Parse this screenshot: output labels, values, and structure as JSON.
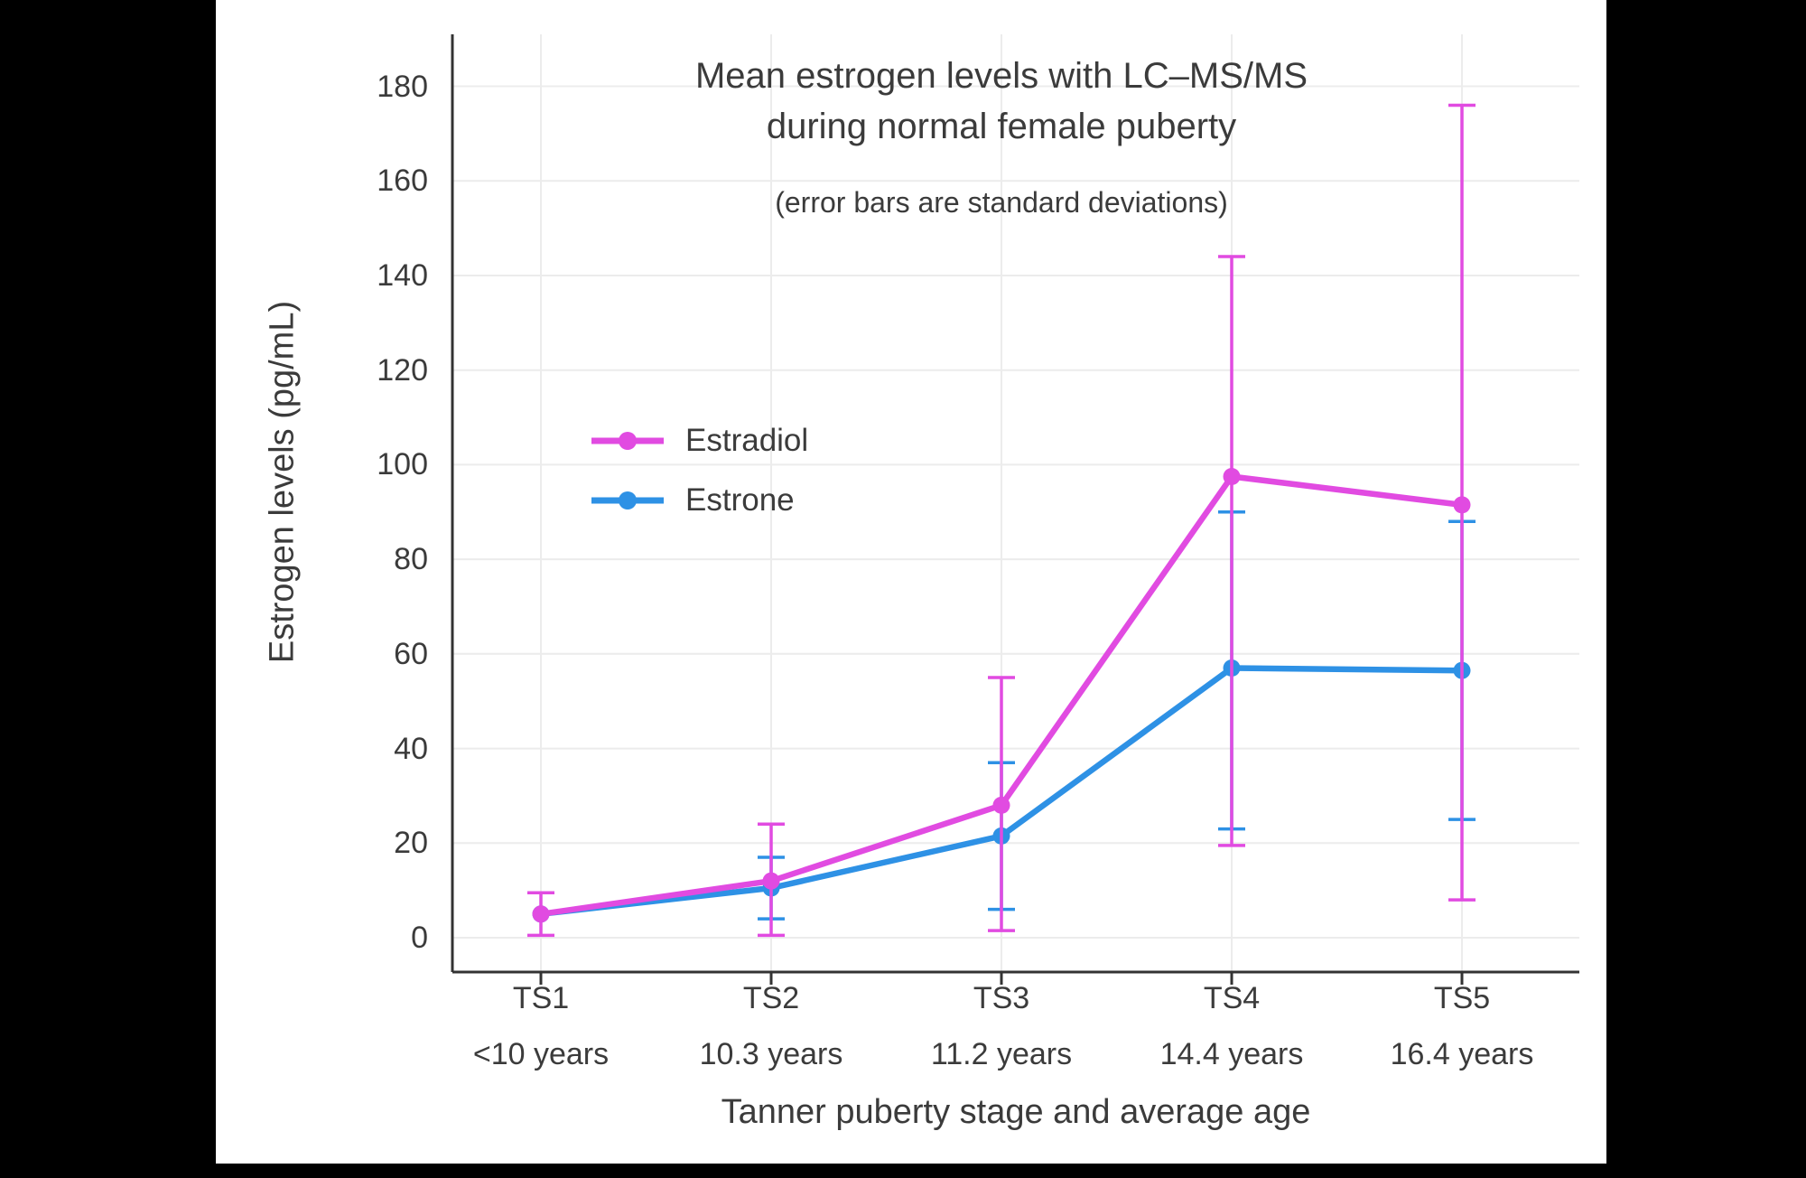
{
  "chart_data": {
    "type": "line",
    "title": "Mean estrogen levels with LC–MS/MS",
    "title_line2": "during normal female puberty",
    "subtitle": "(error bars are standard deviations)",
    "xlabel": "Tanner puberty stage and average age",
    "ylabel": "Estrogen levels (pg/mL)",
    "ylim": [
      0,
      190
    ],
    "yticks": [
      180,
      160,
      140,
      120,
      100,
      80,
      60,
      40,
      20,
      0
    ],
    "grid": true,
    "legend_position": "inside-upper-left",
    "categories": [
      "TS1",
      "TS2",
      "TS3",
      "TS4",
      "TS5"
    ],
    "ages": [
      "<10 years",
      "10.3 years",
      "11.2 years",
      "14.4 years",
      "16.4 years"
    ],
    "series": [
      {
        "name": "Estradiol",
        "color": "#e14be1",
        "values": [
          5,
          12,
          28,
          97.5,
          91.5
        ],
        "err_low": [
          0.5,
          0.5,
          1.5,
          19.5,
          8
        ],
        "err_high": [
          9.5,
          24,
          55,
          144,
          176
        ]
      },
      {
        "name": "Estrone",
        "color": "#2e91e5",
        "values": [
          5,
          10.5,
          21.5,
          57,
          56.5
        ],
        "err_low": [
          5,
          4,
          6,
          23,
          25
        ],
        "err_high": [
          5,
          17,
          37,
          90,
          88
        ]
      }
    ]
  }
}
